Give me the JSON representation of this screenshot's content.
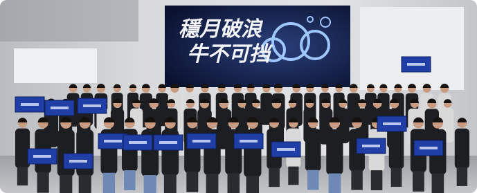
{
  "banner": {
    "line1": "穩月破浪",
    "line2": "牛不可挡"
  }
}
